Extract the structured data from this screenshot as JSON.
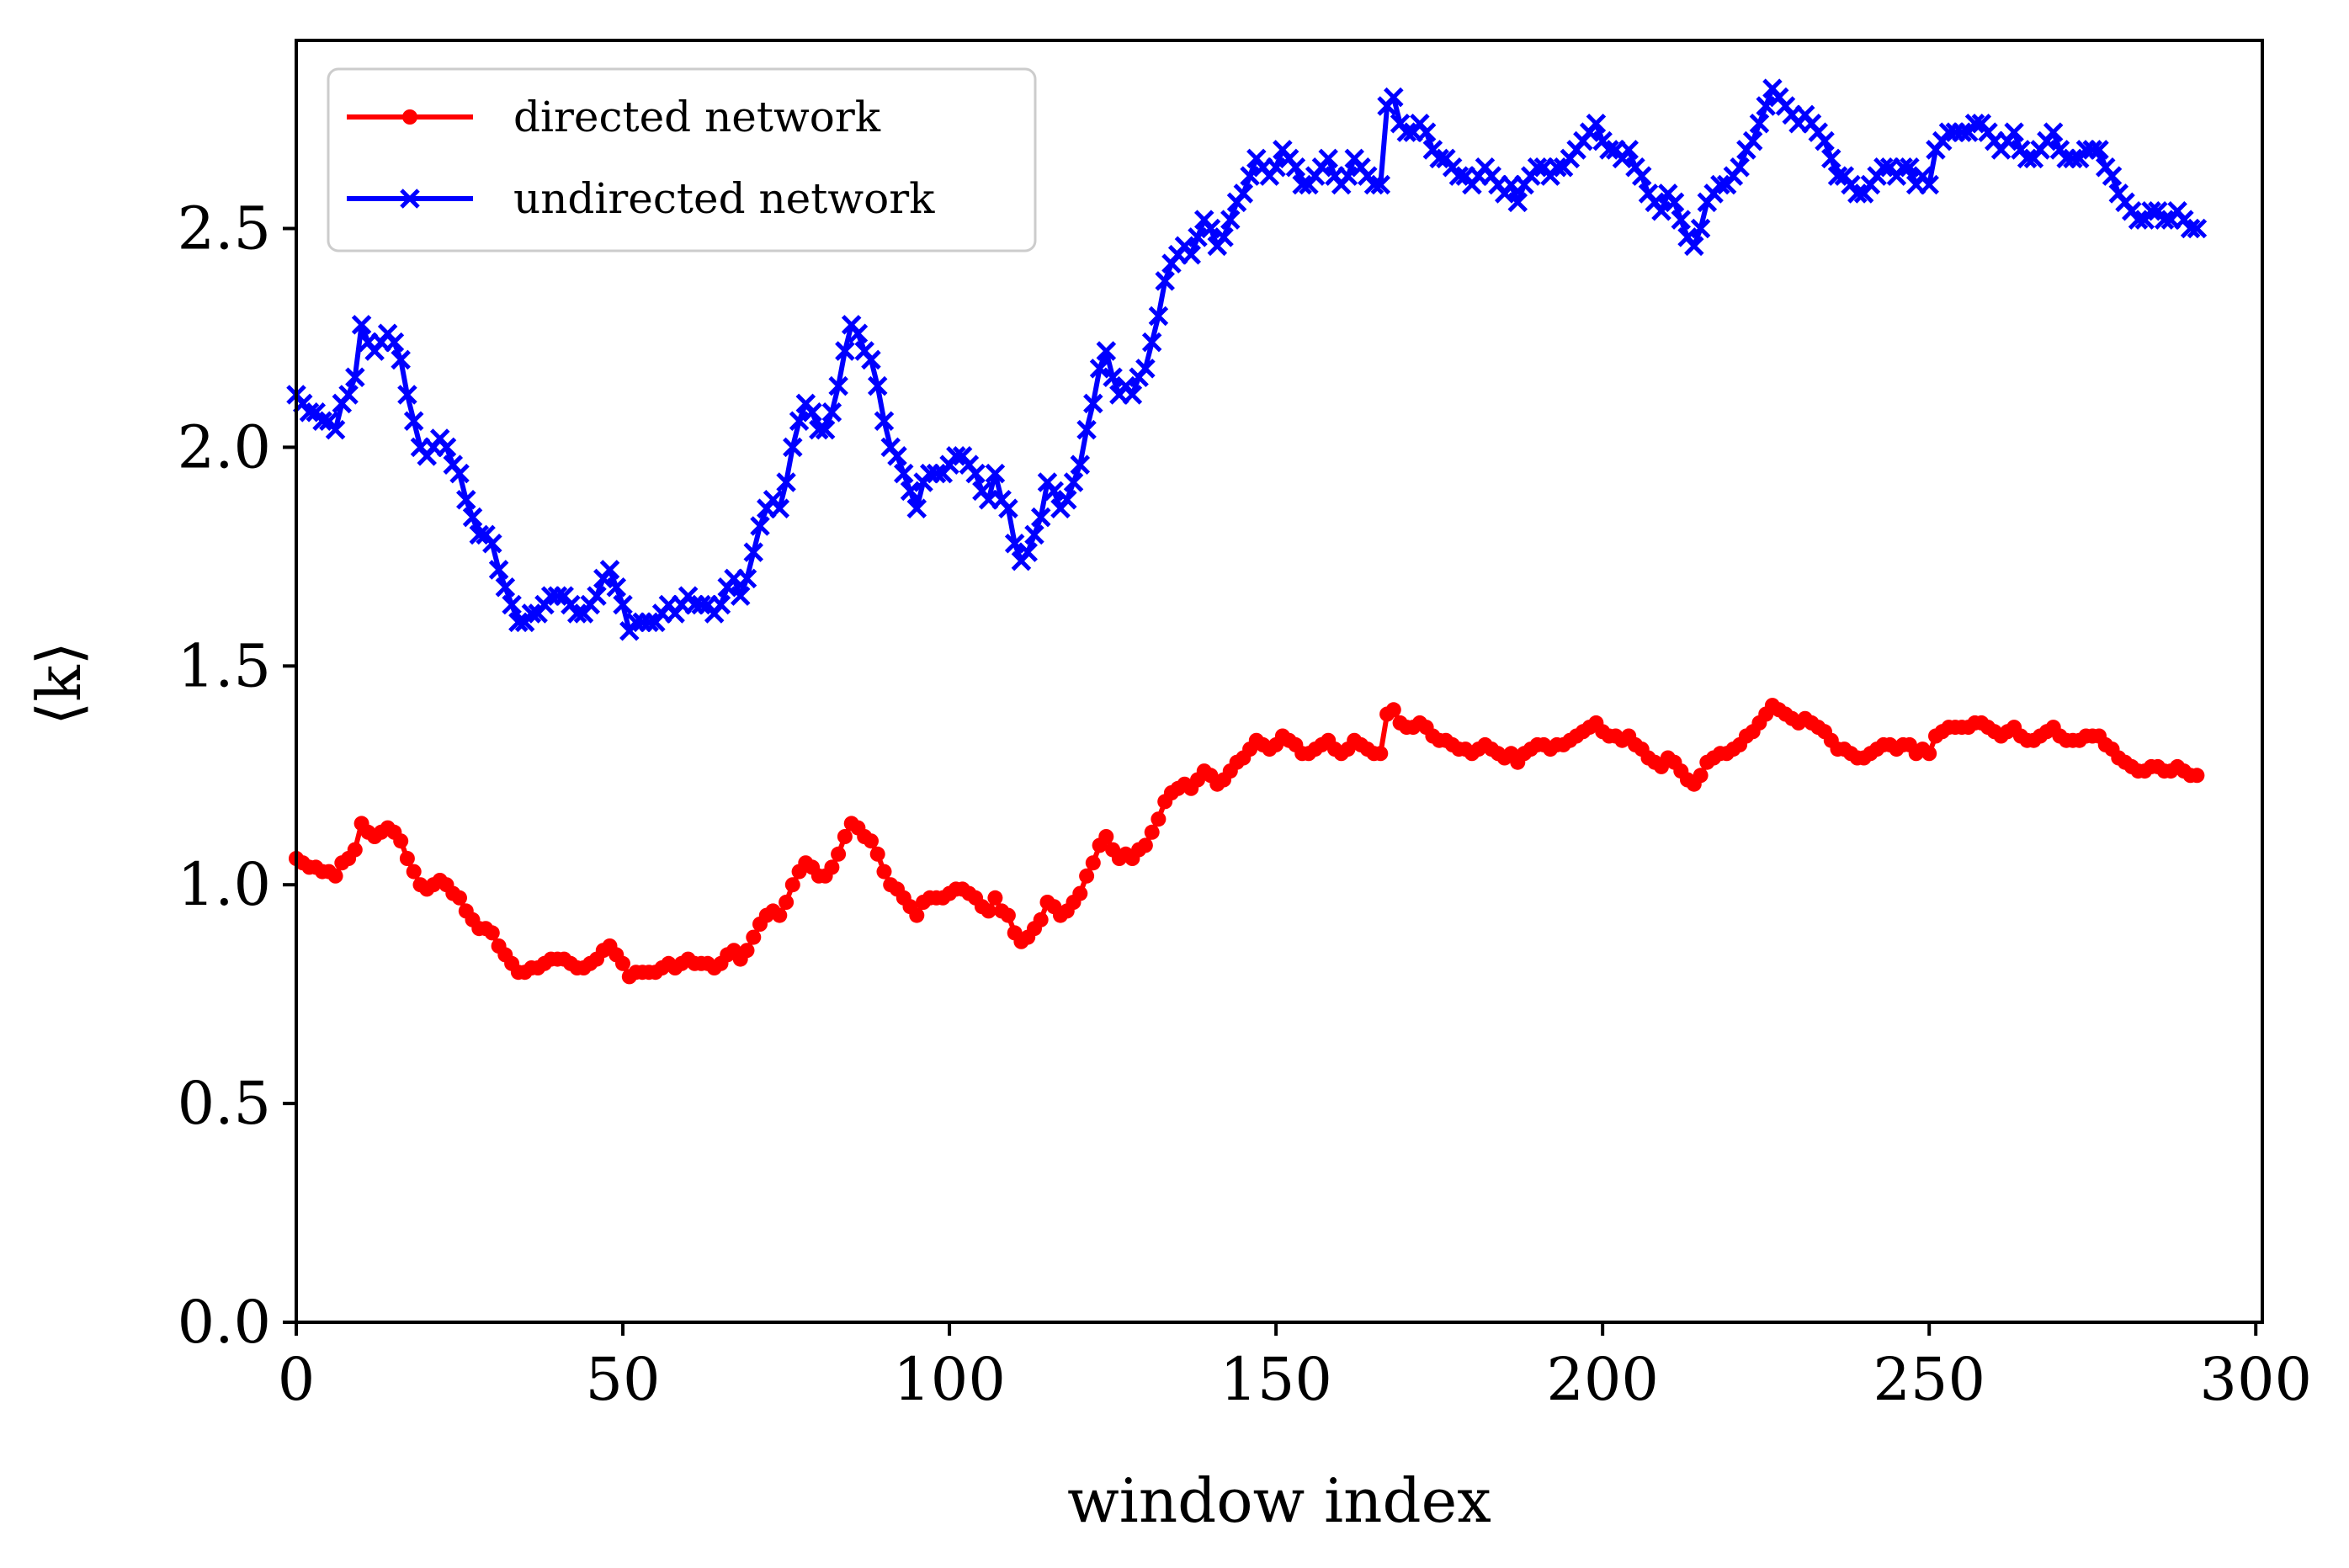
{
  "chart_data": {
    "type": "line",
    "xlabel": "window index",
    "ylabel": "⟨k⟩",
    "xlim": [
      0,
      301
    ],
    "ylim": [
      0.0,
      2.93
    ],
    "x_ticks": [
      "0",
      "50",
      "100",
      "150",
      "200",
      "250",
      "300"
    ],
    "y_ticks": [
      "0.0",
      "0.5",
      "1.0",
      "1.5",
      "2.0",
      "2.5"
    ],
    "legend_position": "top-left",
    "grid": false,
    "x_step": 1,
    "series": [
      {
        "name": "directed network",
        "color": "#ff0000",
        "marker": "dot",
        "values": [
          1.06,
          1.05,
          1.04,
          1.04,
          1.03,
          1.03,
          1.02,
          1.05,
          1.06,
          1.08,
          1.14,
          1.12,
          1.11,
          1.12,
          1.13,
          1.12,
          1.1,
          1.06,
          1.03,
          1.0,
          0.99,
          1.0,
          1.01,
          1.0,
          0.98,
          0.97,
          0.94,
          0.92,
          0.9,
          0.9,
          0.89,
          0.86,
          0.84,
          0.82,
          0.8,
          0.8,
          0.81,
          0.81,
          0.82,
          0.83,
          0.83,
          0.83,
          0.82,
          0.81,
          0.81,
          0.82,
          0.83,
          0.85,
          0.86,
          0.84,
          0.82,
          0.79,
          0.8,
          0.8,
          0.8,
          0.8,
          0.81,
          0.82,
          0.81,
          0.82,
          0.83,
          0.82,
          0.82,
          0.82,
          0.81,
          0.82,
          0.84,
          0.85,
          0.83,
          0.85,
          0.88,
          0.91,
          0.93,
          0.94,
          0.93,
          0.96,
          1.0,
          1.03,
          1.05,
          1.04,
          1.02,
          1.02,
          1.04,
          1.07,
          1.11,
          1.14,
          1.13,
          1.11,
          1.1,
          1.07,
          1.03,
          1.0,
          0.99,
          0.97,
          0.95,
          0.93,
          0.96,
          0.97,
          0.97,
          0.97,
          0.98,
          0.99,
          0.99,
          0.98,
          0.97,
          0.95,
          0.94,
          0.97,
          0.94,
          0.93,
          0.89,
          0.87,
          0.88,
          0.9,
          0.92,
          0.96,
          0.95,
          0.93,
          0.94,
          0.96,
          0.98,
          1.02,
          1.05,
          1.09,
          1.11,
          1.08,
          1.06,
          1.07,
          1.06,
          1.08,
          1.09,
          1.12,
          1.15,
          1.19,
          1.21,
          1.22,
          1.23,
          1.22,
          1.24,
          1.26,
          1.25,
          1.23,
          1.24,
          1.26,
          1.28,
          1.29,
          1.31,
          1.33,
          1.32,
          1.31,
          1.32,
          1.34,
          1.33,
          1.32,
          1.3,
          1.3,
          1.31,
          1.32,
          1.33,
          1.31,
          1.3,
          1.31,
          1.33,
          1.32,
          1.31,
          1.3,
          1.3,
          1.39,
          1.4,
          1.37,
          1.36,
          1.36,
          1.37,
          1.36,
          1.34,
          1.33,
          1.33,
          1.32,
          1.31,
          1.31,
          1.3,
          1.31,
          1.32,
          1.31,
          1.3,
          1.29,
          1.3,
          1.28,
          1.3,
          1.31,
          1.32,
          1.32,
          1.31,
          1.32,
          1.32,
          1.33,
          1.34,
          1.35,
          1.36,
          1.37,
          1.35,
          1.34,
          1.34,
          1.33,
          1.34,
          1.32,
          1.31,
          1.29,
          1.28,
          1.27,
          1.29,
          1.28,
          1.26,
          1.24,
          1.23,
          1.25,
          1.28,
          1.29,
          1.3,
          1.3,
          1.31,
          1.32,
          1.34,
          1.35,
          1.37,
          1.39,
          1.41,
          1.4,
          1.39,
          1.38,
          1.37,
          1.38,
          1.37,
          1.36,
          1.35,
          1.33,
          1.31,
          1.31,
          1.3,
          1.29,
          1.29,
          1.3,
          1.31,
          1.32,
          1.32,
          1.31,
          1.32,
          1.32,
          1.3,
          1.31,
          1.3,
          1.34,
          1.35,
          1.36,
          1.36,
          1.36,
          1.36,
          1.37,
          1.37,
          1.36,
          1.35,
          1.34,
          1.35,
          1.36,
          1.34,
          1.33,
          1.33,
          1.34,
          1.35,
          1.36,
          1.34,
          1.33,
          1.33,
          1.33,
          1.34,
          1.34,
          1.34,
          1.32,
          1.31,
          1.29,
          1.28,
          1.27,
          1.26,
          1.26,
          1.27,
          1.27,
          1.26,
          1.26,
          1.27,
          1.26,
          1.25,
          1.25
        ]
      },
      {
        "name": "undirected network",
        "color": "#0000ff",
        "marker": "x",
        "values": [
          2.12,
          2.1,
          2.08,
          2.08,
          2.06,
          2.06,
          2.04,
          2.1,
          2.12,
          2.16,
          2.28,
          2.24,
          2.22,
          2.24,
          2.26,
          2.24,
          2.2,
          2.12,
          2.06,
          2.0,
          1.98,
          2.0,
          2.02,
          2.0,
          1.96,
          1.94,
          1.88,
          1.84,
          1.8,
          1.8,
          1.78,
          1.72,
          1.68,
          1.64,
          1.6,
          1.6,
          1.62,
          1.62,
          1.64,
          1.66,
          1.66,
          1.66,
          1.64,
          1.62,
          1.62,
          1.64,
          1.66,
          1.7,
          1.72,
          1.68,
          1.64,
          1.58,
          1.6,
          1.6,
          1.6,
          1.6,
          1.62,
          1.64,
          1.62,
          1.64,
          1.66,
          1.64,
          1.64,
          1.64,
          1.62,
          1.64,
          1.68,
          1.7,
          1.66,
          1.7,
          1.76,
          1.82,
          1.86,
          1.88,
          1.86,
          1.92,
          2.0,
          2.06,
          2.1,
          2.08,
          2.04,
          2.04,
          2.08,
          2.14,
          2.22,
          2.28,
          2.26,
          2.22,
          2.2,
          2.14,
          2.06,
          2.0,
          1.98,
          1.94,
          1.9,
          1.86,
          1.92,
          1.94,
          1.94,
          1.94,
          1.96,
          1.98,
          1.98,
          1.96,
          1.94,
          1.9,
          1.88,
          1.94,
          1.88,
          1.86,
          1.78,
          1.74,
          1.76,
          1.8,
          1.84,
          1.92,
          1.9,
          1.86,
          1.88,
          1.92,
          1.96,
          2.04,
          2.1,
          2.18,
          2.22,
          2.16,
          2.12,
          2.14,
          2.12,
          2.16,
          2.18,
          2.24,
          2.3,
          2.38,
          2.42,
          2.44,
          2.46,
          2.44,
          2.48,
          2.52,
          2.5,
          2.46,
          2.48,
          2.52,
          2.56,
          2.58,
          2.62,
          2.66,
          2.64,
          2.62,
          2.64,
          2.68,
          2.66,
          2.64,
          2.6,
          2.6,
          2.62,
          2.64,
          2.66,
          2.62,
          2.6,
          2.62,
          2.66,
          2.64,
          2.62,
          2.6,
          2.6,
          2.78,
          2.8,
          2.74,
          2.72,
          2.72,
          2.74,
          2.72,
          2.68,
          2.66,
          2.66,
          2.64,
          2.62,
          2.62,
          2.6,
          2.62,
          2.64,
          2.62,
          2.6,
          2.58,
          2.6,
          2.56,
          2.6,
          2.62,
          2.64,
          2.64,
          2.62,
          2.64,
          2.64,
          2.66,
          2.68,
          2.7,
          2.72,
          2.74,
          2.7,
          2.68,
          2.68,
          2.66,
          2.68,
          2.64,
          2.62,
          2.58,
          2.56,
          2.54,
          2.58,
          2.56,
          2.52,
          2.48,
          2.46,
          2.5,
          2.56,
          2.58,
          2.6,
          2.6,
          2.62,
          2.64,
          2.68,
          2.7,
          2.74,
          2.78,
          2.82,
          2.8,
          2.78,
          2.76,
          2.74,
          2.76,
          2.74,
          2.72,
          2.7,
          2.66,
          2.62,
          2.62,
          2.6,
          2.58,
          2.58,
          2.6,
          2.62,
          2.64,
          2.64,
          2.62,
          2.64,
          2.64,
          2.6,
          2.62,
          2.6,
          2.68,
          2.7,
          2.72,
          2.72,
          2.72,
          2.72,
          2.74,
          2.74,
          2.72,
          2.7,
          2.68,
          2.7,
          2.72,
          2.68,
          2.66,
          2.66,
          2.68,
          2.7,
          2.72,
          2.68,
          2.66,
          2.66,
          2.66,
          2.68,
          2.68,
          2.68,
          2.64,
          2.62,
          2.58,
          2.56,
          2.54,
          2.52,
          2.52,
          2.54,
          2.54,
          2.52,
          2.52,
          2.54,
          2.52,
          2.5,
          2.5
        ]
      }
    ]
  }
}
